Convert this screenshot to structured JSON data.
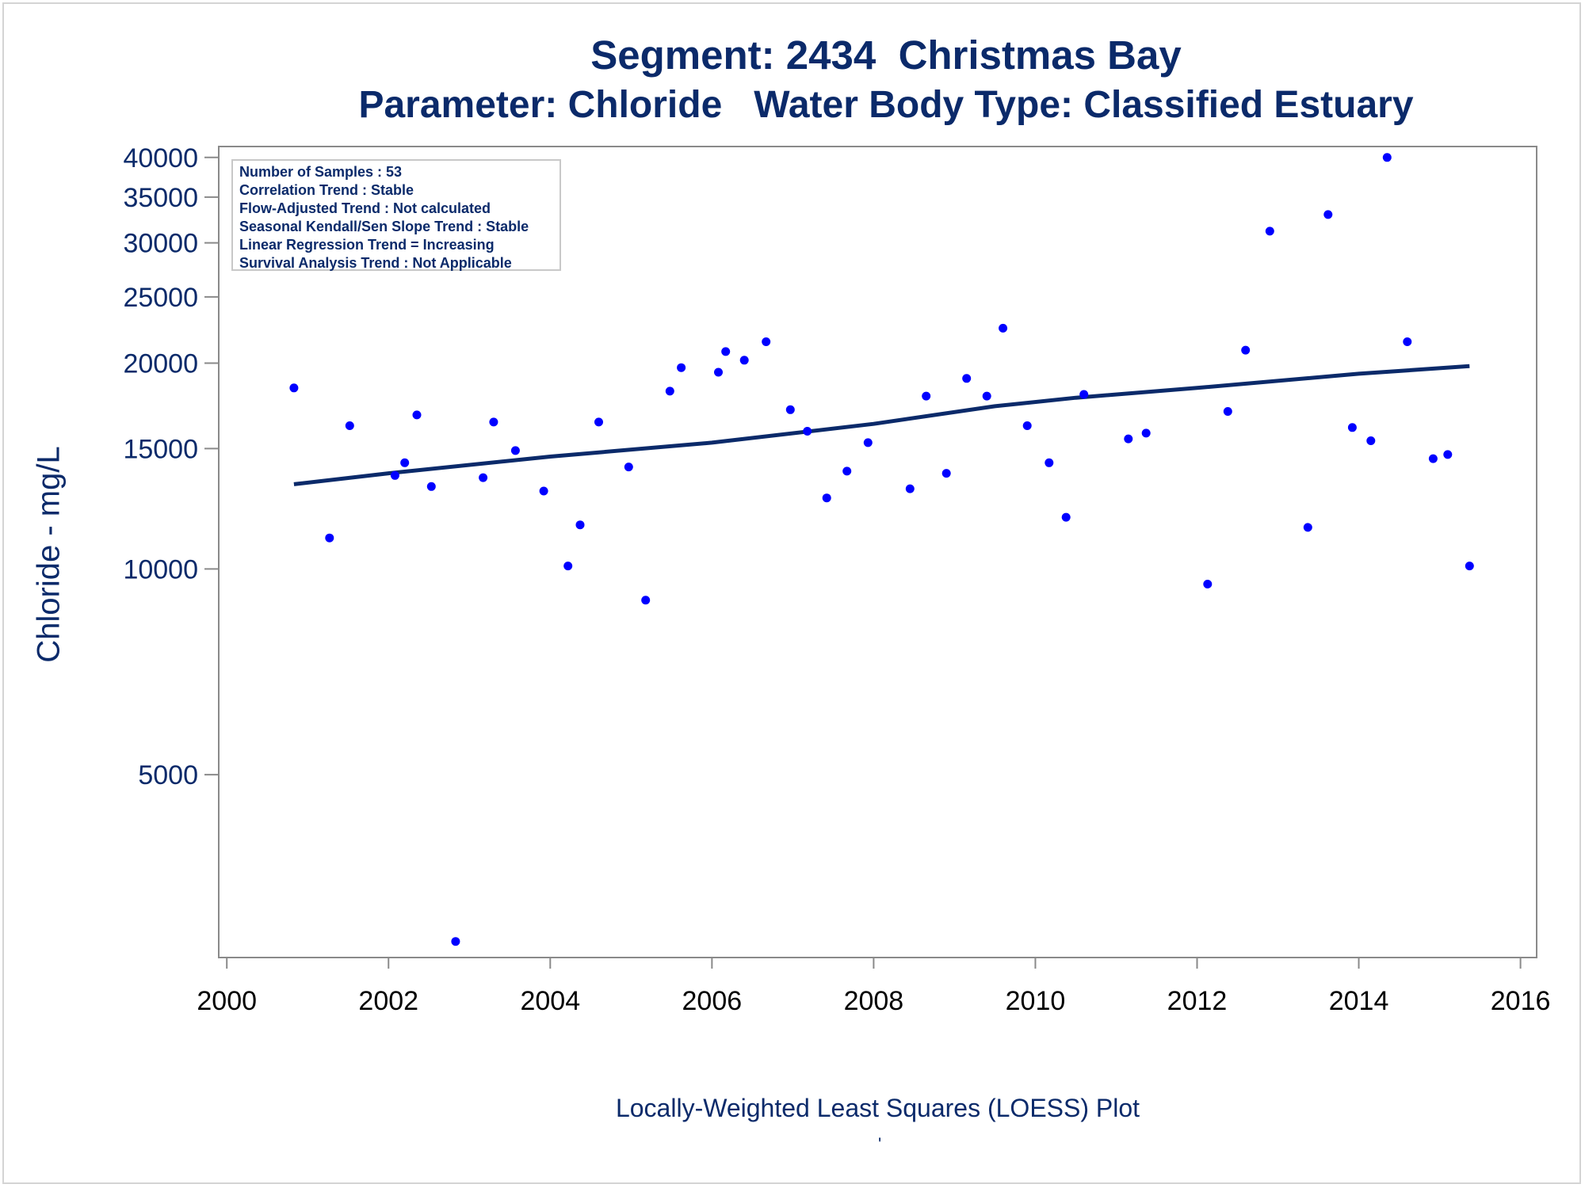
{
  "chart_data": {
    "type": "scatter",
    "title": "Segment: 2434  Christmas Bay",
    "subtitle": "Parameter: Chloride   Water Body Type: Classified Estuary",
    "xlabel": "Locally-Weighted Least Squares (LOESS) Plot",
    "ylabel": "Chloride - mg/L",
    "footnote_mark": "'",
    "xlim": [
      1999.9,
      2016.2
    ],
    "ylim": [
      2700,
      41500
    ],
    "yscale": "log",
    "x_ticks": [
      2000,
      2002,
      2004,
      2006,
      2008,
      2010,
      2012,
      2014,
      2016
    ],
    "y_ticks": [
      5000,
      10000,
      15000,
      20000,
      25000,
      30000,
      35000,
      40000
    ],
    "grid": false,
    "stats_box": [
      "Number of Samples : 53",
      "Correlation Trend : Stable",
      "Flow-Adjusted Trend : Not calculated",
      "Seasonal Kendall/Sen Slope Trend : Stable",
      "Linear Regression Trend = Increasing",
      "Survival Analysis Trend : Not Applicable"
    ],
    "stats_box_placement": "top-left",
    "colors": {
      "points": "#0000ff",
      "trend_line": "#0b2a6a",
      "text": "#0b2a6a"
    },
    "series": [
      {
        "type": "scatter",
        "points": [
          [
            2000.83,
            18400
          ],
          [
            2001.27,
            11100
          ],
          [
            2001.52,
            16200
          ],
          [
            2002.08,
            13700
          ],
          [
            2002.2,
            14300
          ],
          [
            2002.35,
            16800
          ],
          [
            2002.53,
            13200
          ],
          [
            2002.83,
            2850
          ],
          [
            2003.17,
            13600
          ],
          [
            2003.3,
            16400
          ],
          [
            2003.57,
            14900
          ],
          [
            2003.92,
            13000
          ],
          [
            2004.22,
            10100
          ],
          [
            2004.37,
            11600
          ],
          [
            2004.6,
            16400
          ],
          [
            2004.97,
            14100
          ],
          [
            2005.18,
            9000
          ],
          [
            2005.48,
            18200
          ],
          [
            2005.62,
            19700
          ],
          [
            2006.08,
            19400
          ],
          [
            2006.17,
            20800
          ],
          [
            2006.4,
            20200
          ],
          [
            2006.67,
            21500
          ],
          [
            2006.97,
            17100
          ],
          [
            2007.18,
            15900
          ],
          [
            2007.42,
            12700
          ],
          [
            2007.67,
            13900
          ],
          [
            2007.93,
            15300
          ],
          [
            2008.45,
            13100
          ],
          [
            2008.65,
            17900
          ],
          [
            2008.9,
            13800
          ],
          [
            2009.15,
            19000
          ],
          [
            2009.4,
            17900
          ],
          [
            2009.6,
            22500
          ],
          [
            2009.9,
            16200
          ],
          [
            2010.17,
            14300
          ],
          [
            2010.38,
            11900
          ],
          [
            2010.6,
            18000
          ],
          [
            2011.15,
            15500
          ],
          [
            2011.37,
            15800
          ],
          [
            2012.13,
            9500
          ],
          [
            2012.38,
            17000
          ],
          [
            2012.6,
            20900
          ],
          [
            2012.9,
            31200
          ],
          [
            2013.37,
            11500
          ],
          [
            2013.62,
            33000
          ],
          [
            2013.92,
            16100
          ],
          [
            2014.15,
            15400
          ],
          [
            2014.35,
            40000
          ],
          [
            2014.6,
            21500
          ],
          [
            2014.92,
            14500
          ],
          [
            2015.1,
            14700
          ],
          [
            2015.37,
            10100
          ]
        ]
      },
      {
        "type": "line",
        "points": [
          [
            2000.83,
            13300
          ],
          [
            2002,
            13800
          ],
          [
            2004,
            14600
          ],
          [
            2006,
            15300
          ],
          [
            2008,
            16300
          ],
          [
            2009.5,
            17300
          ],
          [
            2010.5,
            17800
          ],
          [
            2012,
            18400
          ],
          [
            2014,
            19300
          ],
          [
            2015.37,
            19800
          ]
        ]
      }
    ]
  }
}
